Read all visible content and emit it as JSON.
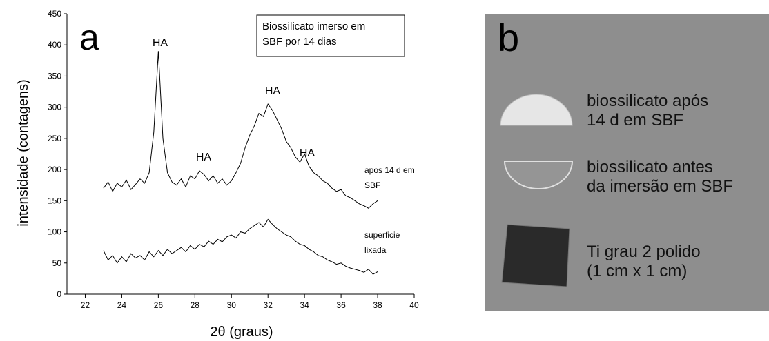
{
  "chart_data": {
    "type": "line",
    "panel_label": "a",
    "xlabel": "2θ (graus)",
    "ylabel": "intensidade (contagens)",
    "legend_box": [
      "Biossilicato imerso em",
      "SBF por 14 dias"
    ],
    "annotations": [
      "HA",
      "HA",
      "HA",
      "HA"
    ],
    "xlim": [
      21,
      40
    ],
    "xticks": [
      22,
      24,
      26,
      28,
      30,
      32,
      34,
      36,
      38,
      40
    ],
    "ylim": [
      0,
      450
    ],
    "yticks": [
      0,
      50,
      100,
      150,
      200,
      250,
      300,
      350,
      400,
      450
    ],
    "x": [
      23,
      23.25,
      23.5,
      23.75,
      24,
      24.25,
      24.5,
      24.75,
      25,
      25.25,
      25.5,
      25.75,
      26,
      26.25,
      26.5,
      26.75,
      27,
      27.25,
      27.5,
      27.75,
      28,
      28.25,
      28.5,
      28.75,
      29,
      29.25,
      29.5,
      29.75,
      30,
      30.25,
      30.5,
      30.75,
      31,
      31.25,
      31.5,
      31.75,
      32,
      32.25,
      32.5,
      32.75,
      33,
      33.25,
      33.5,
      33.75,
      34,
      34.25,
      34.5,
      34.75,
      35,
      35.25,
      35.5,
      35.75,
      36,
      36.25,
      36.5,
      36.75,
      37,
      37.25,
      37.5,
      37.75,
      38
    ],
    "series": [
      {
        "name": "apos 14 d em SBF",
        "color": "#000000",
        "values": [
          170,
          180,
          165,
          178,
          172,
          183,
          168,
          176,
          185,
          178,
          195,
          260,
          390,
          250,
          195,
          180,
          175,
          185,
          172,
          190,
          185,
          198,
          192,
          182,
          190,
          178,
          185,
          175,
          182,
          195,
          210,
          235,
          255,
          270,
          290,
          285,
          305,
          295,
          280,
          265,
          245,
          235,
          220,
          212,
          225,
          205,
          195,
          190,
          182,
          178,
          170,
          165,
          168,
          158,
          155,
          150,
          145,
          142,
          138,
          145,
          150
        ]
      },
      {
        "name": "superficie lixada",
        "color": "#000000",
        "values": [
          70,
          55,
          62,
          50,
          60,
          52,
          65,
          58,
          62,
          55,
          68,
          60,
          70,
          62,
          72,
          65,
          70,
          75,
          68,
          78,
          72,
          80,
          76,
          85,
          80,
          88,
          84,
          92,
          95,
          90,
          100,
          98,
          105,
          110,
          115,
          108,
          120,
          112,
          105,
          100,
          95,
          92,
          85,
          80,
          78,
          72,
          68,
          62,
          60,
          55,
          52,
          48,
          50,
          45,
          42,
          40,
          38,
          35,
          40,
          32,
          36
        ]
      }
    ]
  },
  "panel_b": {
    "label": "b",
    "captions": [
      [
        "biossilicato após",
        "14 d em SBF"
      ],
      [
        "biossilicato antes",
        "da imersão em SBF"
      ],
      [
        "Ti grau 2 polido",
        "(1 cm x 1 cm)"
      ]
    ]
  }
}
